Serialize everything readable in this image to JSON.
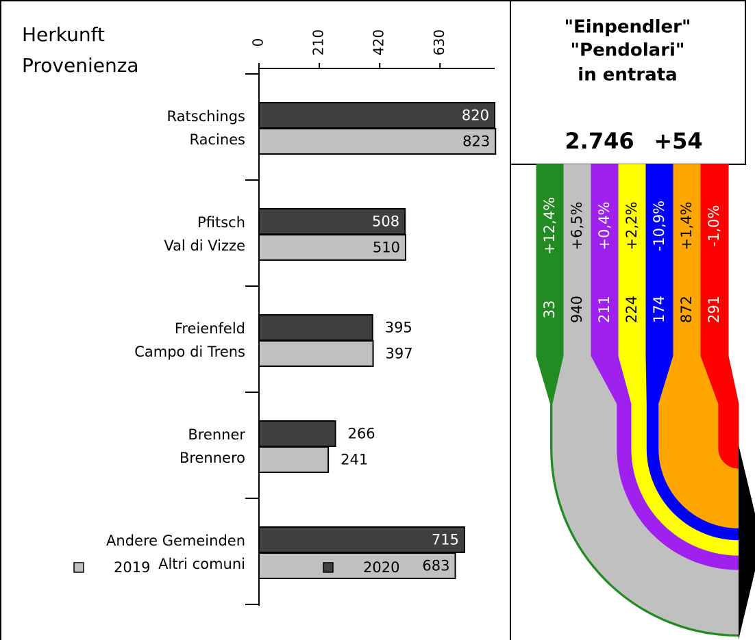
{
  "chart_data": [
    {
      "type": "bar",
      "title": [
        "Herkunft",
        "Provenienza"
      ],
      "categories": [
        [
          "Ratschings",
          "Racines"
        ],
        [
          "Pfitsch",
          "Val di Vizze"
        ],
        [
          "Freienfeld",
          "Campo di Trens"
        ],
        [
          "Brenner",
          "Brennero"
        ],
        [
          "Andere Gemeinden",
          "Altri comuni"
        ]
      ],
      "series": [
        {
          "name": "2019",
          "color": "#c0c0c0",
          "values": [
            823,
            510,
            397,
            241,
            683
          ]
        },
        {
          "name": "2020",
          "color": "#404040",
          "values": [
            820,
            508,
            395,
            266,
            715
          ]
        }
      ],
      "xlim": [
        0,
        820
      ],
      "xticks": [
        0,
        210,
        420,
        630
      ]
    },
    {
      "type": "flow",
      "title": [
        "\"Einpendler\"",
        "\"Pendolari\"",
        "in entrata"
      ],
      "total": "2.746",
      "change": "+54",
      "values": [
        33,
        940,
        211,
        224,
        174,
        872,
        291
      ],
      "colors": [
        "#228b22",
        "#c0c0c0",
        "#a020f0",
        "#ffff00",
        "#0000ff",
        "#ffa500",
        "#ff0000"
      ],
      "changes": [
        12.4,
        6.5,
        0.4,
        2.2,
        -10.9,
        1.4,
        -1.0
      ],
      "change_labels": [
        "+12,4%",
        "+6,5%",
        "+0,4%",
        "+2,2%",
        "-10,9%",
        "+1,4%",
        "-1,0%"
      ]
    }
  ]
}
